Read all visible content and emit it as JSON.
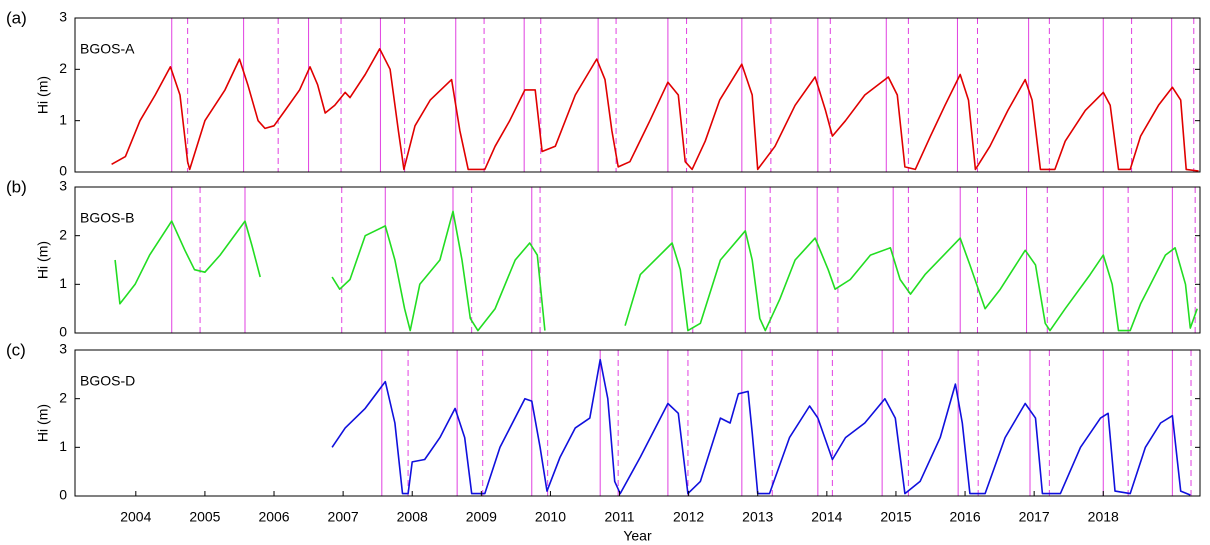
{
  "chart_data": [
    {
      "type": "line",
      "panel_label": "(a)",
      "title": "BGOS-A",
      "y_label": "Hi (m)",
      "color": "#e00000",
      "xlim": [
        2003.12,
        2019.4
      ],
      "ylim": [
        0,
        3
      ],
      "yticks": [
        0,
        1,
        2,
        3
      ],
      "vline_color": "#e040e0",
      "vlines_solid": [
        2004.52,
        2005.56,
        2006.5,
        2007.54,
        2008.63,
        2009.62,
        2010.69,
        2011.7,
        2012.77,
        2013.87,
        2014.86,
        2015.89,
        2016.92,
        2018.0,
        2018.99
      ],
      "vlines_dashed": [
        2004.75,
        2006.06,
        2006.97,
        2007.89,
        2009.04,
        2009.86,
        2010.95,
        2011.97,
        2013.19,
        2014.05,
        2015.18,
        2016.18,
        2017.22,
        2018.41,
        2019.31
      ],
      "x": [
        2003.65,
        2003.85,
        2004.06,
        2004.28,
        2004.5,
        2004.64,
        2004.75,
        2004.78,
        2005.0,
        2005.29,
        2005.5,
        2005.62,
        2005.77,
        2005.87,
        2006.0,
        2006.16,
        2006.37,
        2006.52,
        2006.63,
        2006.74,
        2006.88,
        2007.03,
        2007.1,
        2007.32,
        2007.53,
        2007.68,
        2007.8,
        2007.88,
        2008.04,
        2008.26,
        2008.57,
        2008.69,
        2008.81,
        2009.05,
        2009.2,
        2009.41,
        2009.63,
        2009.78,
        2009.88,
        2010.07,
        2010.36,
        2010.67,
        2010.79,
        2010.89,
        2010.98,
        2011.15,
        2011.44,
        2011.7,
        2011.85,
        2011.95,
        2012.05,
        2012.24,
        2012.45,
        2012.77,
        2012.92,
        2013.0,
        2013.25,
        2013.54,
        2013.83,
        2013.98,
        2014.08,
        2014.27,
        2014.55,
        2014.89,
        2015.02,
        2015.13,
        2015.28,
        2015.5,
        2015.71,
        2015.93,
        2016.05,
        2016.15,
        2016.36,
        2016.62,
        2016.87,
        2016.97,
        2017.09,
        2017.3,
        2017.45,
        2017.74,
        2018.0,
        2018.1,
        2018.22,
        2018.39,
        2018.54,
        2018.8,
        2019.0,
        2019.12,
        2019.2,
        2019.38
      ],
      "values": [
        0.15,
        0.3,
        1.0,
        1.5,
        2.05,
        1.5,
        0.2,
        0.05,
        1.0,
        1.6,
        2.2,
        1.7,
        1.0,
        0.85,
        0.9,
        1.2,
        1.6,
        2.05,
        1.7,
        1.15,
        1.3,
        1.55,
        1.45,
        1.9,
        2.4,
        2.0,
        0.8,
        0.05,
        0.9,
        1.4,
        1.8,
        0.8,
        0.05,
        0.05,
        0.5,
        1.0,
        1.6,
        1.6,
        0.4,
        0.5,
        1.5,
        2.2,
        1.8,
        0.8,
        0.1,
        0.2,
        1.0,
        1.75,
        1.5,
        0.2,
        0.05,
        0.6,
        1.4,
        2.1,
        1.5,
        0.05,
        0.5,
        1.3,
        1.85,
        1.2,
        0.7,
        1.0,
        1.5,
        1.85,
        1.5,
        0.1,
        0.05,
        0.7,
        1.3,
        1.9,
        1.4,
        0.05,
        0.5,
        1.2,
        1.8,
        1.4,
        0.05,
        0.05,
        0.6,
        1.2,
        1.55,
        1.3,
        0.05,
        0.05,
        0.7,
        1.3,
        1.65,
        1.4,
        0.05,
        0.02
      ]
    },
    {
      "type": "line",
      "panel_label": "(b)",
      "title": "BGOS-B",
      "y_label": "Hi (m)",
      "color": "#22dd22",
      "xlim": [
        2003.12,
        2019.4
      ],
      "ylim": [
        0,
        3
      ],
      "yticks": [
        0,
        1,
        2,
        3
      ],
      "vline_color": "#e040e0",
      "vlines_solid": [
        2004.52,
        2005.58,
        2007.61,
        2008.59,
        2009.73,
        2011.76,
        2012.82,
        2013.86,
        2014.96,
        2015.93,
        2016.89,
        2018.0,
        2019.0
      ],
      "vlines_dashed": [
        2004.93,
        2006.98,
        2008.86,
        2009.85,
        2012.06,
        2013.18,
        2014.16,
        2015.18,
        2016.18,
        2017.19,
        2018.36,
        2019.33
      ],
      "x": [
        2003.7,
        2003.77,
        2003.99,
        2004.2,
        2004.52,
        2004.71,
        2004.85,
        2005.0,
        2005.22,
        2005.58,
        2005.68,
        2005.8,
        2006.3,
        2006.84,
        2006.95,
        2007.1,
        2007.32,
        2007.61,
        2007.75,
        2007.89,
        2007.97,
        2008.11,
        2008.4,
        2008.59,
        2008.72,
        2008.84,
        2008.95,
        2009.2,
        2009.49,
        2009.7,
        2009.81,
        2009.92,
        2010.5,
        2011.08,
        2011.3,
        2011.76,
        2011.88,
        2011.99,
        2012.17,
        2012.46,
        2012.82,
        2012.92,
        2013.03,
        2013.11,
        2013.32,
        2013.54,
        2013.83,
        2014.02,
        2014.12,
        2014.34,
        2014.63,
        2014.92,
        2015.06,
        2015.21,
        2015.42,
        2015.93,
        2016.07,
        2016.29,
        2016.51,
        2016.87,
        2017.02,
        2017.16,
        2017.23,
        2017.45,
        2017.81,
        2018.0,
        2018.13,
        2018.22,
        2018.39,
        2018.54,
        2018.9,
        2019.04,
        2019.19,
        2019.26,
        2019.36
      ],
      "values": [
        1.5,
        0.6,
        1.0,
        1.6,
        2.3,
        1.7,
        1.3,
        1.25,
        1.6,
        2.3,
        1.8,
        1.15,
        null,
        1.15,
        0.9,
        1.1,
        2.0,
        2.2,
        1.5,
        0.5,
        0.05,
        1.0,
        1.5,
        2.5,
        1.5,
        0.3,
        0.05,
        0.5,
        1.5,
        1.85,
        1.6,
        0.05,
        null,
        0.15,
        1.2,
        1.85,
        1.3,
        0.05,
        0.2,
        1.5,
        2.1,
        1.5,
        0.3,
        0.05,
        0.7,
        1.5,
        1.95,
        1.3,
        0.9,
        1.1,
        1.6,
        1.75,
        1.1,
        0.8,
        1.2,
        1.95,
        1.4,
        0.5,
        0.9,
        1.7,
        1.4,
        0.2,
        0.05,
        0.5,
        1.2,
        1.6,
        1.0,
        0.05,
        0.05,
        0.6,
        1.6,
        1.75,
        1.0,
        0.1,
        0.5
      ]
    },
    {
      "type": "line",
      "panel_label": "(c)",
      "title": "BGOS-D",
      "y_label": "Hi (m)",
      "x_label": "Year",
      "color": "#1010dd",
      "xlim": [
        2003.12,
        2019.4
      ],
      "ylim": [
        0,
        3
      ],
      "yticks": [
        0,
        1,
        2,
        3
      ],
      "xticks": [
        2004,
        2005,
        2006,
        2007,
        2008,
        2009,
        2010,
        2011,
        2012,
        2013,
        2014,
        2015,
        2016,
        2017,
        2018
      ],
      "vline_color": "#e040e0",
      "vlines_solid": [
        2007.56,
        2008.65,
        2009.73,
        2010.72,
        2011.7,
        2012.77,
        2013.87,
        2014.8,
        2015.9,
        2016.94,
        2018.0,
        2019.0
      ],
      "vlines_dashed": [
        2007.94,
        2009.02,
        2009.96,
        2010.98,
        2011.99,
        2013.21,
        2014.08,
        2015.18,
        2016.19,
        2017.22,
        2018.36,
        2019.27
      ],
      "x": [
        2006.84,
        2007.03,
        2007.32,
        2007.61,
        2007.75,
        2007.86,
        2007.94,
        2008.0,
        2008.18,
        2008.4,
        2008.62,
        2008.76,
        2008.86,
        2009.05,
        2009.27,
        2009.63,
        2009.73,
        2009.85,
        2009.95,
        2010.14,
        2010.36,
        2010.57,
        2010.72,
        2010.83,
        2010.93,
        2011.01,
        2011.3,
        2011.7,
        2011.85,
        2011.99,
        2012.17,
        2012.46,
        2012.6,
        2012.72,
        2012.86,
        2012.92,
        2013.0,
        2013.17,
        2013.46,
        2013.75,
        2013.87,
        2014.08,
        2014.27,
        2014.55,
        2014.84,
        2014.99,
        2015.13,
        2015.35,
        2015.64,
        2015.86,
        2015.96,
        2016.07,
        2016.29,
        2016.58,
        2016.87,
        2017.02,
        2017.12,
        2017.38,
        2017.67,
        2017.96,
        2018.07,
        2018.17,
        2018.39,
        2018.61,
        2018.83,
        2019.0,
        2019.12,
        2019.26
      ],
      "values": [
        1.0,
        1.4,
        1.8,
        2.35,
        1.5,
        0.05,
        0.05,
        0.7,
        0.75,
        1.2,
        1.8,
        1.2,
        0.05,
        0.05,
        1.0,
        2.0,
        1.95,
        1.0,
        0.1,
        0.8,
        1.4,
        1.6,
        2.8,
        2.0,
        0.3,
        0.05,
        0.8,
        1.9,
        1.7,
        0.05,
        0.3,
        1.6,
        1.5,
        2.1,
        2.15,
        1.3,
        0.05,
        0.05,
        1.2,
        1.85,
        1.6,
        0.75,
        1.2,
        1.5,
        2.0,
        1.6,
        0.05,
        0.3,
        1.2,
        2.3,
        1.5,
        0.05,
        0.05,
        1.2,
        1.9,
        1.6,
        0.05,
        0.05,
        1.0,
        1.6,
        1.7,
        0.1,
        0.05,
        1.0,
        1.5,
        1.65,
        0.1,
        0.02
      ]
    }
  ]
}
